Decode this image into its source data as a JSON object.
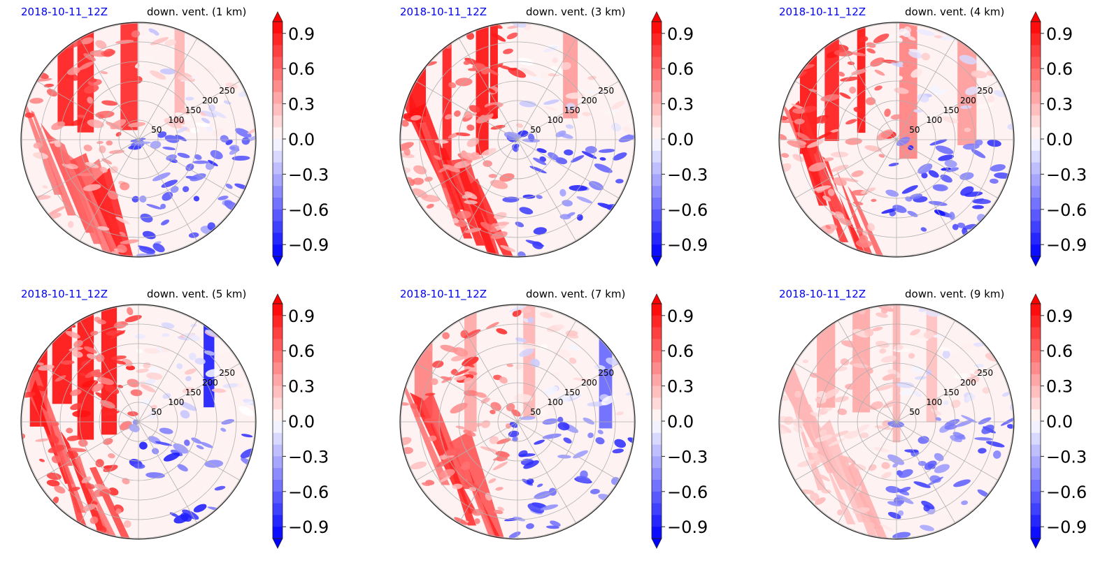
{
  "chart_data": [
    {
      "type": "heatmap",
      "projection": "polar",
      "date": "2018-10-11_12Z",
      "title": "down. vent. (1 km)",
      "radial_ticks": [
        50,
        100,
        150,
        200,
        250
      ],
      "colorbar": {
        "min": -1.0,
        "max": 1.0,
        "ticks": [
          "0.9",
          "0.6",
          "0.3",
          "0.0",
          "−0.3",
          "−0.6",
          "−0.9"
        ],
        "extend": "both",
        "cmap": "bwr"
      }
    },
    {
      "type": "heatmap",
      "projection": "polar",
      "date": "2018-10-11_12Z",
      "title": "down. vent. (3 km)",
      "radial_ticks": [
        50,
        100,
        150,
        200,
        250
      ],
      "colorbar": {
        "min": -1.0,
        "max": 1.0,
        "ticks": [
          "0.9",
          "0.6",
          "0.3",
          "0.0",
          "−0.3",
          "−0.6",
          "−0.9"
        ],
        "extend": "both",
        "cmap": "bwr"
      }
    },
    {
      "type": "heatmap",
      "projection": "polar",
      "date": "2018-10-11_12Z",
      "title": "down. vent. (4 km)",
      "radial_ticks": [
        50,
        100,
        150,
        200,
        250
      ],
      "colorbar": {
        "min": -1.0,
        "max": 1.0,
        "ticks": [
          "0.9",
          "0.6",
          "0.3",
          "0.0",
          "−0.3",
          "−0.6",
          "−0.9"
        ],
        "extend": "both",
        "cmap": "bwr"
      }
    },
    {
      "type": "heatmap",
      "projection": "polar",
      "date": "2018-10-11_12Z",
      "title": "down. vent. (5 km)",
      "radial_ticks": [
        50,
        100,
        150,
        200,
        250
      ],
      "colorbar": {
        "min": -1.0,
        "max": 1.0,
        "ticks": [
          "0.9",
          "0.6",
          "0.3",
          "0.0",
          "−0.3",
          "−0.6",
          "−0.9"
        ],
        "extend": "both",
        "cmap": "bwr"
      }
    },
    {
      "type": "heatmap",
      "projection": "polar",
      "date": "2018-10-11_12Z",
      "title": "down. vent. (7 km)",
      "radial_ticks": [
        50,
        100,
        150,
        200,
        250
      ],
      "colorbar": {
        "min": -1.0,
        "max": 1.0,
        "ticks": [
          "0.9",
          "0.6",
          "0.3",
          "0.0",
          "−0.3",
          "−0.6",
          "−0.9"
        ],
        "extend": "both",
        "cmap": "bwr"
      }
    },
    {
      "type": "heatmap",
      "projection": "polar",
      "date": "2018-10-11_12Z",
      "title": "down. vent. (9 km)",
      "radial_ticks": [
        50,
        100,
        150,
        200,
        250
      ],
      "colorbar": {
        "min": -1.0,
        "max": 1.0,
        "ticks": [
          "0.9",
          "0.6",
          "0.3",
          "0.0",
          "−0.3",
          "−0.6",
          "−0.9"
        ],
        "extend": "both",
        "cmap": "bwr"
      }
    }
  ]
}
